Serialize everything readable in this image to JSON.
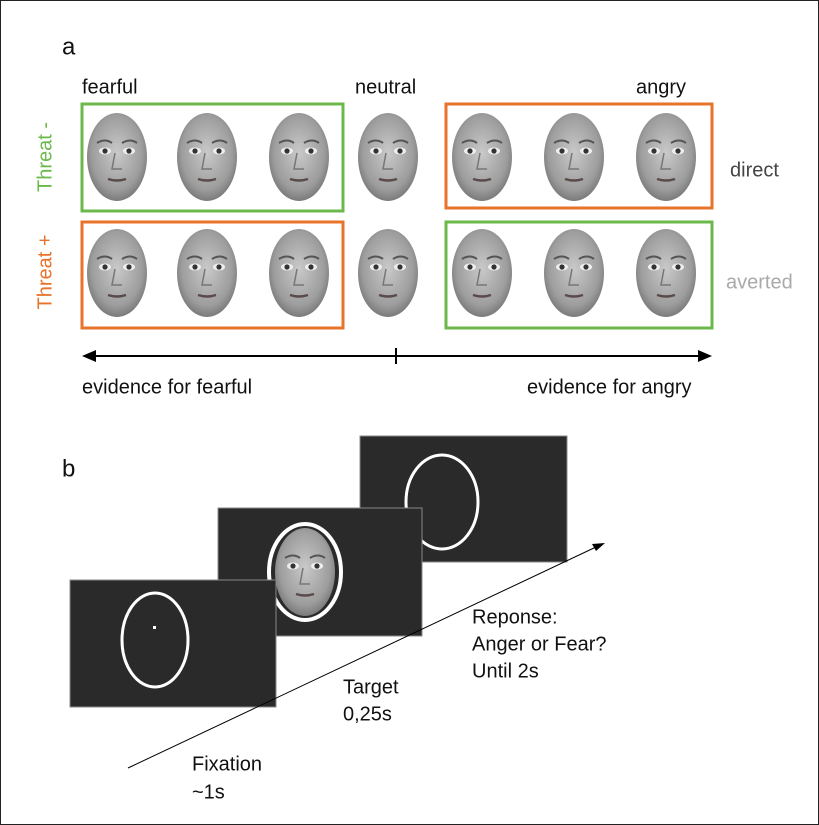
{
  "panel_a": {
    "label": "a",
    "columns": [
      "fearful",
      "neutral",
      "angry"
    ],
    "rows": [
      "Threat -",
      "Threat +"
    ],
    "gaze": [
      "direct",
      "averted"
    ],
    "axis": [
      "evidence for fearful",
      "evidence for angry"
    ]
  },
  "panel_b": {
    "label": "b",
    "steps": [
      {
        "name": "Fixation",
        "duration": "~1s"
      },
      {
        "name": "Target",
        "duration": "0,25s"
      },
      {
        "name": "Reponse:",
        "question": "Anger or Fear?",
        "duration": "Until 2s"
      }
    ]
  }
}
